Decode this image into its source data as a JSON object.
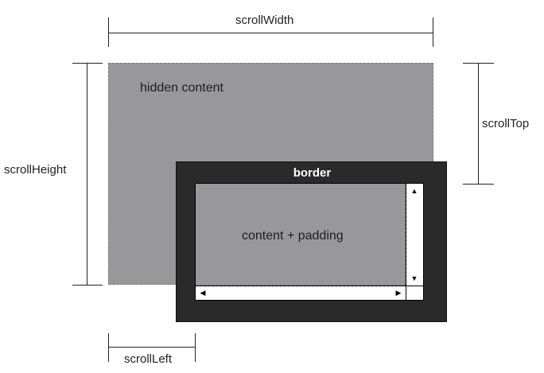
{
  "labels": {
    "scroll_width": "scrollWidth",
    "scroll_height": "scrollHeight",
    "scroll_top": "scrollTop",
    "scroll_left": "scrollLeft",
    "hidden_content": "hidden content",
    "border": "border",
    "content_padding": "content + padding"
  },
  "icons": {
    "up": "up-arrow-icon",
    "down": "down-arrow-icon",
    "left": "left-arrow-icon",
    "right": "right-arrow-icon"
  },
  "colors": {
    "hidden_area": "#98989a",
    "border_box": "#2a2a2a",
    "text": "#222222"
  }
}
